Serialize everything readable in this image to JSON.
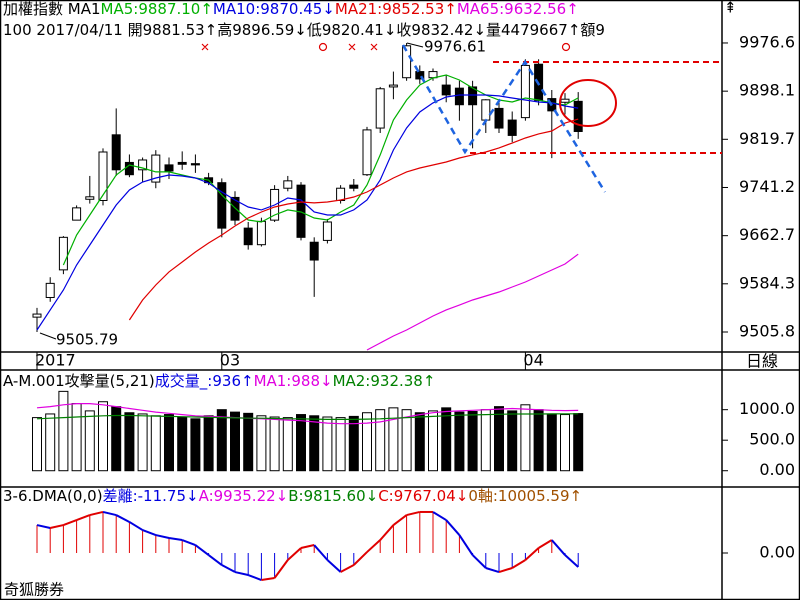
{
  "chart_data": [
    {
      "type": "candlestick",
      "header": [
        [
          {
            "text": "加權指數 MA1",
            "color": "#000000"
          },
          {
            "text": "MA5:9887.10↑",
            "color": "#00b000"
          },
          {
            "text": "MA10:9870.45↓",
            "color": "#0000e0"
          },
          {
            "text": "MA21:9852.53↑",
            "color": "#e00000"
          },
          {
            "text": "MA65:9632.56↑",
            "color": "#e000e0"
          }
        ],
        [
          {
            "text": "100 2017/04/11 開9881.53↑高9896.59↓低9820.41↓收9832.42↓量4479667↑額9",
            "color": "#000000"
          }
        ]
      ],
      "categories": [
        "2017",
        null,
        null,
        null,
        null,
        null,
        null,
        null,
        null,
        null,
        null,
        null,
        null,
        null,
        "03",
        null,
        null,
        null,
        null,
        null,
        null,
        null,
        null,
        null,
        null,
        null,
        null,
        null,
        null,
        null,
        null,
        null,
        null,
        null,
        null,
        null,
        null,
        "04",
        null,
        null,
        null,
        null
      ],
      "open": [
        9530,
        9562,
        9607,
        9688,
        9722,
        9720,
        9827,
        9782,
        9770,
        9750,
        9778,
        9782,
        9780,
        9757,
        9749,
        9725,
        9675,
        9648,
        9688,
        9740,
        9745,
        9652,
        9655,
        9720,
        9745,
        9762,
        9838,
        9905,
        9920,
        9930,
        9920,
        9908,
        9903,
        9905,
        9851,
        9870,
        9851,
        9855,
        9942,
        9886,
        9880,
        9881.53
      ],
      "high": [
        9545,
        9595,
        9662,
        9712,
        9760,
        9805,
        9870,
        9795,
        9790,
        9802,
        9790,
        9800,
        9795,
        9765,
        9756,
        9735,
        9685,
        9692,
        9745,
        9760,
        9750,
        9660,
        9690,
        9745,
        9755,
        9840,
        9905,
        9930,
        9976.61,
        9940,
        9935,
        9925,
        9915,
        9915,
        9885,
        9885,
        9865,
        9950,
        9950,
        9900,
        9895,
        9896.59
      ],
      "low": [
        9505.79,
        9555,
        9600,
        9690,
        9715,
        9712,
        9760,
        9758,
        9750,
        9740,
        9755,
        9770,
        9765,
        9745,
        9660,
        9680,
        9640,
        9645,
        9685,
        9735,
        9655,
        9563,
        9650,
        9715,
        9735,
        9760,
        9830,
        9885,
        9915,
        9910,
        9915,
        9880,
        9850,
        9805,
        9830,
        9830,
        9815,
        9850,
        9875,
        9789,
        9860,
        9820.41
      ],
      "close": [
        9535,
        9585,
        9660,
        9708,
        9726,
        9799,
        9770,
        9762,
        9786,
        9794,
        9768,
        9779,
        9778,
        9749,
        9675,
        9688,
        9648,
        9686,
        9738,
        9752,
        9660,
        9623,
        9685,
        9740,
        9740,
        9835,
        9902,
        9908,
        9972,
        9918,
        9930,
        9892,
        9876,
        9876,
        9884,
        9838,
        9826,
        9940,
        9883,
        9866,
        9885,
        9832.42
      ],
      "series": [
        {
          "color": "#00b000",
          "values": [
            null,
            null,
            9615.0,
            9663.8,
            9696.4,
            9729.0,
            9761.6,
            9777.9,
            9773.0,
            9766.5,
            9766.5,
            9761.6,
            9756.7,
            9753.4,
            9729.0,
            9707.8,
            9688.3,
            9685.0,
            9696.4,
            9704.6,
            9701.3,
            9691.5,
            9688.3,
            9701.3,
            9712.7,
            9745.3,
            9794.2,
            9851.2,
            9883.7,
            9908.2,
            9919.6,
            9924.5,
            9916.3,
            9903.3,
            9891.9,
            9883.7,
            9880.5,
            9887.0,
            9883.7,
            9878.9,
            9875.6,
            9887.1
          ]
        },
        {
          "color": "#0000e0",
          "values": [
            9509.1,
            9541.7,
            9574.2,
            9615.0,
            9647.5,
            9680.1,
            9712.7,
            9737.1,
            9750.2,
            9756.7,
            9761.6,
            9759.9,
            9756.7,
            9748.5,
            9733.9,
            9720.8,
            9709.4,
            9704.6,
            9712.7,
            9724.1,
            9720.8,
            9701.3,
            9696.4,
            9696.4,
            9704.6,
            9720.8,
            9753.4,
            9802.3,
            9838.1,
            9864.2,
            9878.9,
            9888.6,
            9891.9,
            9891.9,
            9891.9,
            9890.3,
            9887.0,
            9883.7,
            9880.5,
            9878.9,
            9874.0,
            9870.45
          ]
        },
        {
          "color": "#e00000",
          "values": [
            null,
            null,
            null,
            null,
            null,
            null,
            null,
            9525.4,
            9557.9,
            9582.4,
            9603.6,
            9619.8,
            9636.1,
            9650.8,
            9663.8,
            9678.5,
            9691.5,
            9701.3,
            9709.4,
            9714.3,
            9717.6,
            9716.0,
            9717.6,
            9720.8,
            9725.7,
            9733.9,
            9745.3,
            9756.7,
            9766.5,
            9773.0,
            9777.9,
            9782.7,
            9789.3,
            9794.2,
            9799.0,
            9805.6,
            9813.7,
            9821.8,
            9828.4,
            9833.2,
            9846.0,
            9852.53
          ]
        },
        {
          "color": "#e000e0",
          "values": [
            null,
            null,
            null,
            null,
            null,
            null,
            null,
            null,
            null,
            null,
            null,
            null,
            null,
            null,
            null,
            null,
            null,
            null,
            null,
            null,
            null,
            null,
            null,
            null,
            null,
            9476.5,
            9487.9,
            9499.3,
            9509.1,
            9520.5,
            9531.9,
            9541.7,
            9549.8,
            9557.9,
            9564.5,
            9571.0,
            9579.1,
            9587.3,
            9597.0,
            9606.8,
            9616.6,
            9632.56
          ]
        }
      ],
      "ylim": [
        9473.2,
        10046.6
      ],
      "yticks": [
        9976.6,
        9898.1,
        9819.7,
        9741.2,
        9662.7,
        9584.3,
        9505.8
      ],
      "annotations": [
        "9505.79",
        "9976.61"
      ],
      "period": "日線"
    },
    {
      "type": "volume",
      "header": [
        [
          {
            "text": "A-M.001攻擊量(5,21)",
            "color": "#000000"
          },
          {
            "text": "成交量_:936↑",
            "color": "#0000e0"
          },
          {
            "text": "MA1:988↓",
            "color": "#e000e0"
          },
          {
            "text": "MA2:932.38↑",
            "color": "#008000"
          }
        ]
      ],
      "values": [
        870,
        930,
        1300,
        1100,
        980,
        1130,
        1050,
        950,
        930,
        900,
        920,
        880,
        850,
        900,
        1000,
        960,
        940,
        900,
        880,
        870,
        920,
        900,
        880,
        870,
        890,
        950,
        1000,
        1030,
        1000,
        950,
        980,
        1030,
        960,
        970,
        1000,
        1050,
        980,
        1080,
        1000,
        930,
        920,
        936
      ],
      "series": [
        {
          "color": "#e000e0",
          "values": [
            1030,
            1050,
            1080,
            1100,
            1100,
            1080,
            1050,
            1020,
            990,
            960,
            940,
            920,
            900,
            890,
            880,
            870,
            860,
            850,
            840,
            830,
            820,
            800,
            780,
            770,
            770,
            780,
            800,
            840,
            880,
            920,
            950,
            970,
            980,
            990,
            1000,
            1010,
            1020,
            1010,
            1000,
            990,
            985,
            988
          ]
        },
        {
          "color": "#008000",
          "values": [
            850,
            860,
            870,
            880,
            890,
            900,
            905,
            905,
            900,
            895,
            890,
            885,
            880,
            875,
            870,
            865,
            860,
            860,
            855,
            850,
            850,
            845,
            840,
            840,
            840,
            845,
            850,
            860,
            870,
            880,
            890,
            900,
            910,
            915,
            920,
            925,
            930,
            930,
            930,
            931,
            932,
            932.38
          ]
        }
      ],
      "ylim": [
        -266.7,
        1650
      ],
      "yticks": [
        {
          "value": 1000,
          "label": "1000.0"
        },
        {
          "value": 500,
          "label": "500.0"
        },
        {
          "value": 0,
          "label": "0.00"
        }
      ]
    },
    {
      "type": "dma",
      "header": [
        [
          {
            "text": "3-6.DMA(0,0)",
            "color": "#000000"
          },
          {
            "text": "差離:-11.75↓",
            "color": "#0000e0"
          },
          {
            "text": "A:9935.22↓",
            "color": "#e000e0"
          },
          {
            "text": "B:9815.60↓",
            "color": "#008000"
          },
          {
            "text": "C:9767.04↓",
            "color": "#e00000"
          },
          {
            "text": "0軸:10005.59↑",
            "color": "#a05000"
          }
        ]
      ],
      "values": [
        23.5,
        21.0,
        23.5,
        27.7,
        31.9,
        34.5,
        31.9,
        26.1,
        19.3,
        15.1,
        12.6,
        10.9,
        6.7,
        -1.7,
        -10.1,
        -16.0,
        -18.5,
        -22.7,
        -21.0,
        -5.9,
        4.2,
        6.7,
        -5.9,
        -16.0,
        -10.1,
        0.8,
        10.9,
        23.5,
        31.9,
        34.5,
        34.5,
        27.7,
        15.1,
        -1.7,
        -12.6,
        -16.0,
        -12.6,
        -5.9,
        4.2,
        10.9,
        -1.7,
        -11.75
      ],
      "up_color": "#e00000",
      "down_color": "#0000e0",
      "ylim": [
        -39.5,
        53.8
      ],
      "yticks": [
        {
          "value": 0,
          "label": "0.00"
        }
      ],
      "footer": "奇狐勝券"
    }
  ]
}
